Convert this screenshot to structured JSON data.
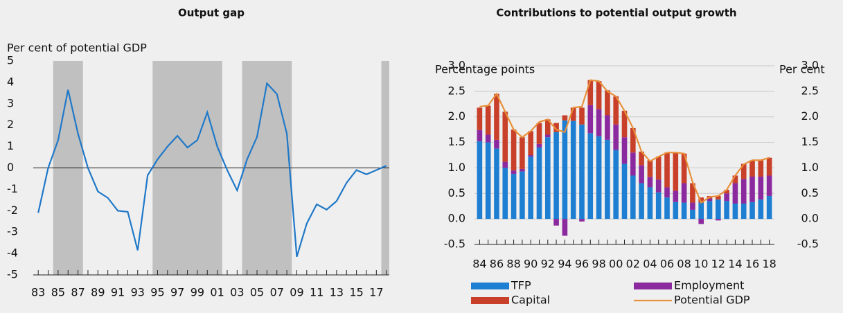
{
  "chart_data": [
    {
      "type": "line",
      "title": "Output gap",
      "y_label": "Per cent of potential GDP",
      "x": [
        1983,
        1984,
        1985,
        1986,
        1987,
        1988,
        1989,
        1990,
        1991,
        1992,
        1993,
        1994,
        1995,
        1996,
        1997,
        1998,
        1999,
        2000,
        2001,
        2002,
        2003,
        2004,
        2005,
        2006,
        2007,
        2008,
        2009,
        2010,
        2011,
        2012,
        2013,
        2014,
        2015,
        2016,
        2017,
        2018
      ],
      "values": [
        -2.1,
        0.0,
        1.3,
        3.65,
        1.6,
        0.0,
        -1.1,
        -1.4,
        -2.0,
        -2.05,
        -3.85,
        -0.35,
        0.4,
        1.0,
        1.5,
        0.95,
        1.3,
        2.6,
        1.0,
        -0.1,
        -1.05,
        0.4,
        1.45,
        3.95,
        3.45,
        1.6,
        -4.15,
        -2.6,
        -1.7,
        -1.95,
        -1.55,
        -0.7,
        -0.1,
        -0.3,
        -0.1,
        0.1
      ],
      "color": "#1f78c8",
      "shading": [
        [
          1984.5,
          1987.5
        ],
        [
          1994.5,
          2001.5
        ],
        [
          2003.5,
          2008.5
        ],
        [
          2017.5,
          2018.3
        ]
      ],
      "shading_color": "#c0c0c0",
      "xlim": [
        1982.5,
        2018.3
      ],
      "xticks": [
        {
          "value": 1983,
          "label": "83"
        },
        {
          "value": 1985,
          "label": "85"
        },
        {
          "value": 1987,
          "label": "87"
        },
        {
          "value": 1989,
          "label": "89"
        },
        {
          "value": 1991,
          "label": "91"
        },
        {
          "value": 1993,
          "label": "93"
        },
        {
          "value": 1995,
          "label": "95"
        },
        {
          "value": 1997,
          "label": "97"
        },
        {
          "value": 1999,
          "label": "99"
        },
        {
          "value": 2001,
          "label": "01"
        },
        {
          "value": 2003,
          "label": "03"
        },
        {
          "value": 2005,
          "label": "05"
        },
        {
          "value": 2007,
          "label": "07"
        },
        {
          "value": 2009,
          "label": "09"
        },
        {
          "value": 2011,
          "label": "11"
        },
        {
          "value": 2013,
          "label": "13"
        },
        {
          "value": 2015,
          "label": "15"
        },
        {
          "value": 2017,
          "label": "17"
        }
      ],
      "ylim": [
        -5,
        5
      ],
      "yticks": [
        -5,
        -4,
        -3,
        -2,
        -1,
        0,
        1,
        2,
        3,
        4,
        5
      ],
      "grid": false
    },
    {
      "type": "bar",
      "stacked": true,
      "title": "Contributions to potential output growth",
      "y_label": "Percentage points",
      "y2_label": "Per cent",
      "x": [
        1984,
        1985,
        1986,
        1987,
        1988,
        1989,
        1990,
        1991,
        1992,
        1993,
        1994,
        1995,
        1996,
        1997,
        1998,
        1999,
        2000,
        2001,
        2002,
        2003,
        2004,
        2005,
        2006,
        2007,
        2008,
        2009,
        2010,
        2011,
        2012,
        2013,
        2014,
        2015,
        2016,
        2017,
        2018
      ],
      "series": [
        {
          "name": "TFP",
          "type": "bar",
          "color": "#1e7fd2",
          "values": [
            1.52,
            1.5,
            1.38,
            1.0,
            0.88,
            0.93,
            1.22,
            1.4,
            1.6,
            1.7,
            1.93,
            1.92,
            1.85,
            1.68,
            1.62,
            1.55,
            1.35,
            1.08,
            0.85,
            0.7,
            0.62,
            0.52,
            0.42,
            0.33,
            0.32,
            0.18,
            0.32,
            0.35,
            0.38,
            0.35,
            0.3,
            0.3,
            0.33,
            0.38,
            0.45
          ]
        },
        {
          "name": "Employment",
          "type": "bar",
          "color": "#8b2a9e",
          "values": [
            0.22,
            0.15,
            0.17,
            0.12,
            0.07,
            0.05,
            0.03,
            0.07,
            0.05,
            -0.13,
            -0.33,
            0.0,
            -0.05,
            0.55,
            0.53,
            0.48,
            0.5,
            0.52,
            0.45,
            0.35,
            0.2,
            0.25,
            0.2,
            0.22,
            0.38,
            0.14,
            -0.1,
            0.05,
            -0.03,
            0.15,
            0.4,
            0.48,
            0.5,
            0.45,
            0.4
          ]
        },
        {
          "name": "Capital",
          "type": "bar",
          "color": "#c9402a",
          "values": [
            0.44,
            0.57,
            0.9,
            0.98,
            0.8,
            0.62,
            0.47,
            0.41,
            0.3,
            0.18,
            0.1,
            0.26,
            0.33,
            0.49,
            0.55,
            0.49,
            0.55,
            0.52,
            0.48,
            0.27,
            0.33,
            0.45,
            0.68,
            0.75,
            0.58,
            0.38,
            0.1,
            0.05,
            0.07,
            0.07,
            0.15,
            0.3,
            0.32,
            0.32,
            0.35
          ]
        },
        {
          "name": "Potential GDP",
          "type": "line",
          "color": "#e8903a",
          "values": [
            2.2,
            2.22,
            2.45,
            2.1,
            1.75,
            1.6,
            1.72,
            1.9,
            1.95,
            1.75,
            1.7,
            2.18,
            2.2,
            2.72,
            2.7,
            2.5,
            2.4,
            2.12,
            1.78,
            1.32,
            1.13,
            1.22,
            1.3,
            1.3,
            1.28,
            0.72,
            0.32,
            0.43,
            0.45,
            0.57,
            0.85,
            1.07,
            1.15,
            1.15,
            1.2
          ]
        }
      ],
      "xlim": [
        1983.4,
        2018.6
      ],
      "xticks": [
        {
          "value": 1984,
          "label": "84"
        },
        {
          "value": 1986,
          "label": "86"
        },
        {
          "value": 1988,
          "label": "88"
        },
        {
          "value": 1990,
          "label": "90"
        },
        {
          "value": 1992,
          "label": "92"
        },
        {
          "value": 1994,
          "label": "94"
        },
        {
          "value": 1996,
          "label": "96"
        },
        {
          "value": 1998,
          "label": "98"
        },
        {
          "value": 2000,
          "label": "00"
        },
        {
          "value": 2002,
          "label": "02"
        },
        {
          "value": 2004,
          "label": "04"
        },
        {
          "value": 2006,
          "label": "06"
        },
        {
          "value": 2008,
          "label": "08"
        },
        {
          "value": 2010,
          "label": "10"
        },
        {
          "value": 2012,
          "label": "12"
        },
        {
          "value": 2014,
          "label": "14"
        },
        {
          "value": 2016,
          "label": "16"
        },
        {
          "value": 2018,
          "label": "18"
        }
      ],
      "ylim": [
        -0.5,
        3.0
      ],
      "yticks": [
        -0.5,
        {
          "value": 0,
          "label": "0.0"
        },
        0.5,
        {
          "value": 1,
          "label": "1.0"
        },
        1.5,
        {
          "value": 2,
          "label": "2.0"
        },
        2.5,
        {
          "value": 3,
          "label": "3.0"
        }
      ],
      "y2lim": [
        -0.5,
        3.0
      ],
      "y2ticks": [
        -0.5,
        {
          "value": 0,
          "label": "0.0"
        },
        0.5,
        {
          "value": 1,
          "label": "1.0"
        },
        1.5,
        {
          "value": 2,
          "label": "2.0"
        },
        2.5,
        {
          "value": 3,
          "label": "3.0"
        }
      ],
      "grid": true
    }
  ]
}
